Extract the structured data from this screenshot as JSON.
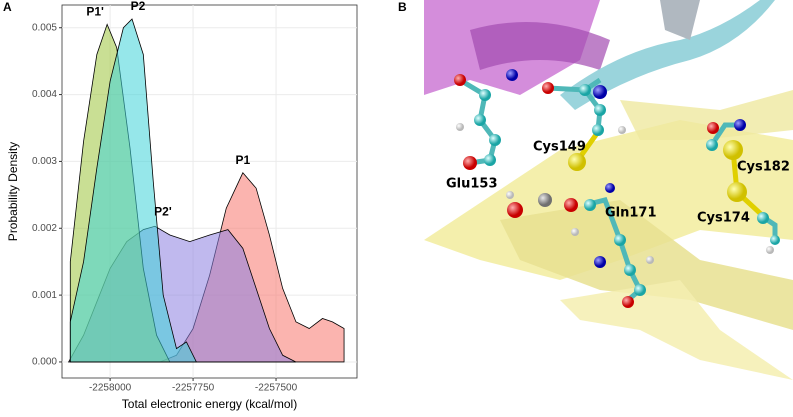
{
  "panel_a_label": "A",
  "chart_data": {
    "type": "density",
    "xlabel": "Total electronic energy (kcal/mol)",
    "ylabel": "Probability Density",
    "xlim": [
      -2258145,
      -2257256
    ],
    "ylim": [
      -0.00024,
      0.00534
    ],
    "xticks": [
      -2258000,
      -2257750,
      -2257500
    ],
    "yticks": [
      {
        "value": 0,
        "label": "0.000"
      },
      {
        "value": 0.001,
        "label": "0.001"
      },
      {
        "value": 0.002,
        "label": "0.002"
      },
      {
        "value": 0.003,
        "label": "0.003"
      },
      {
        "value": 0.004,
        "label": "0.004"
      },
      {
        "value": 0.005,
        "label": "0.005"
      }
    ],
    "grid": true,
    "series": [
      {
        "name": "P1",
        "color": "#f8766d",
        "x": [
          -2257850,
          -2257800,
          -2257750,
          -2257700,
          -2257650,
          -2257600,
          -2257560,
          -2257520,
          -2257480,
          -2257440,
          -2257400,
          -2257360,
          -2257330,
          -2257295
        ],
        "values": [
          0,
          0.0001,
          0.0005,
          0.0013,
          0.0023,
          0.00283,
          0.0026,
          0.0019,
          0.0011,
          0.0006,
          0.0005,
          0.00065,
          0.0006,
          0.0005
        ]
      },
      {
        "name": "P2'",
        "color": "#8c7fe0",
        "x": [
          -2258125,
          -2258080,
          -2258040,
          -2258000,
          -2257950,
          -2257900,
          -2257865,
          -2257820,
          -2257760,
          -2257700,
          -2257645,
          -2257600,
          -2257560,
          -2257520,
          -2257480,
          -2257440
        ],
        "values": [
          0,
          0.0004,
          0.0009,
          0.0014,
          0.0018,
          0.00198,
          0.00203,
          0.0019,
          0.0018,
          0.0019,
          0.00198,
          0.0017,
          0.0011,
          0.0005,
          0.0001,
          0
        ]
      },
      {
        "name": "P1'",
        "color": "#9cc43c",
        "x": [
          -2258120,
          -2258080,
          -2258040,
          -2258009,
          -2257980,
          -2257940,
          -2257900,
          -2257860,
          -2257820
        ],
        "values": [
          0.0015,
          0.0033,
          0.0046,
          0.00505,
          0.0047,
          0.0032,
          0.0014,
          0.0004,
          0
        ]
      },
      {
        "name": "P2",
        "color": "#3fd4d8",
        "x": [
          -2258120,
          -2258080,
          -2258040,
          -2258000,
          -2257960,
          -2257934,
          -2257900,
          -2257870,
          -2257840,
          -2257800,
          -2257770,
          -2257740
        ],
        "values": [
          0.0006,
          0.0015,
          0.0029,
          0.0042,
          0.005,
          0.00513,
          0.0046,
          0.0027,
          0.001,
          0.0002,
          0.0003,
          0
        ]
      }
    ]
  },
  "panel_b": {
    "label": "B",
    "residues": [
      "Cys149",
      "Glu153",
      "Gln171",
      "Cys182",
      "Cys174"
    ]
  }
}
